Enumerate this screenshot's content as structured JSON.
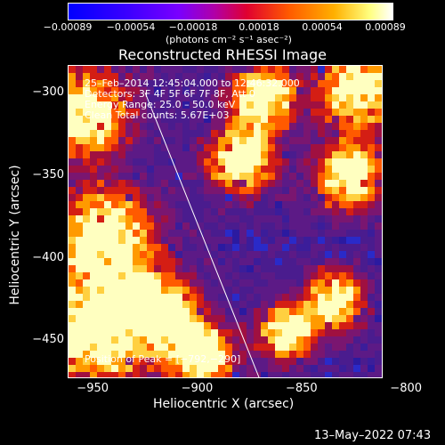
{
  "chart_data": {
    "type": "heatmap",
    "title": "Reconstructed RHESSI Image",
    "xlabel": "Heliocentric X (arcsec)",
    "ylabel": "Heliocentric Y (arcsec)",
    "xlim": [
      -962,
      -812
    ],
    "ylim": [
      -472,
      -283
    ],
    "x_ticks": [
      "−950",
      "−900",
      "−850",
      "−800"
    ],
    "y_ticks": [
      "−300",
      "−350",
      "−400",
      "−450"
    ],
    "colorbar": {
      "range": [
        -0.00089,
        0.00089
      ],
      "ticks": [
        "−0.00089",
        "−0.00054",
        "−0.00018",
        "0.00018",
        "0.00054",
        "0.00089"
      ],
      "unit_label": "(photons cm⁻² s⁻¹ asec⁻²)"
    },
    "annotations": [
      "25–Feb–2014 12:45:04.000 to 12:46:32.000",
      "Detectors: 3F 4F 5F 6F 7F 8F, Att 0",
      "Energy Range: 25.0 – 50.0 keV",
      "Clean     Total counts: 5.67E+03"
    ],
    "peak_label": "Position of Peak = [−792,−290]",
    "grid": false
  },
  "footer": {
    "date": "13–May–2022 07:43"
  }
}
